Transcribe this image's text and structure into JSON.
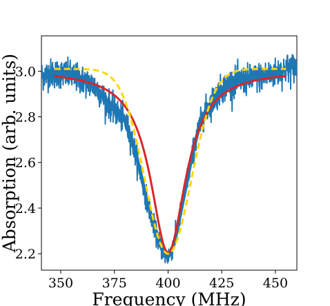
{
  "chart_data": {
    "type": "line",
    "xlabel": "Frequency (MHz)",
    "ylabel": "Absorption (arb. units)",
    "xlim": [
      341,
      460
    ],
    "ylim": [
      2.128,
      3.155
    ],
    "xticks": [
      350,
      375,
      400,
      425,
      450
    ],
    "yticks": [
      2.2,
      2.4,
      2.6,
      2.8,
      3.0
    ],
    "xtick_labels": [
      "350",
      "375",
      "400",
      "425",
      "450"
    ],
    "ytick_labels": [
      "2.2",
      "2.4",
      "2.6",
      "2.8",
      "3.0"
    ],
    "grid": false,
    "legend": "none",
    "series": [
      {
        "style": "noisy-data",
        "color": "#1f77b4",
        "x": [
          341,
          345,
          350,
          355,
          360,
          365,
          368,
          371,
          374,
          377,
          380,
          383,
          386,
          389,
          392,
          395,
          397,
          399,
          400,
          401,
          403,
          405,
          408,
          411,
          414,
          417,
          420,
          423,
          426,
          430,
          435,
          440,
          445,
          450,
          455,
          460
        ],
        "y": [
          2.98,
          2.99,
          2.99,
          2.98,
          2.96,
          2.94,
          2.91,
          2.87,
          2.84,
          2.81,
          2.78,
          2.7,
          2.6,
          2.48,
          2.37,
          2.27,
          2.22,
          2.19,
          2.19,
          2.2,
          2.25,
          2.34,
          2.48,
          2.62,
          2.74,
          2.82,
          2.86,
          2.9,
          2.93,
          2.95,
          2.96,
          2.97,
          2.98,
          2.99,
          3.01,
          3.02
        ]
      },
      {
        "style": "solid",
        "color": "#d62728",
        "model": "lorentzian",
        "x_range": [
          347,
          455
        ],
        "center": 400,
        "baseline": 3.005,
        "depth": 0.8,
        "hwhm": 10
      },
      {
        "style": "dashed",
        "color": "#ffd700",
        "model": "gaussian",
        "x_range": [
          347,
          455
        ],
        "center": 400,
        "baseline": 3.01,
        "depth": 0.81,
        "sigma": 10.7
      }
    ]
  }
}
